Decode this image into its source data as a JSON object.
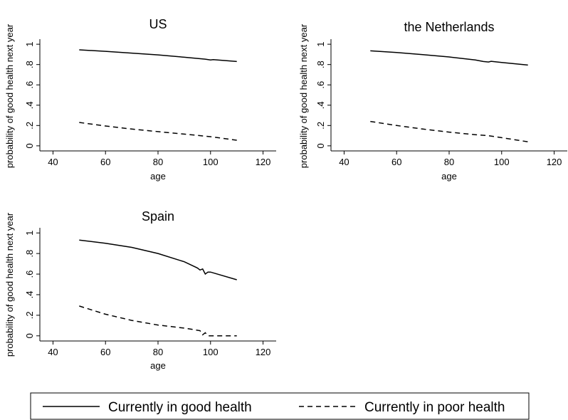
{
  "chart_data": [
    {
      "type": "line",
      "title": "US",
      "xlabel": "age",
      "ylabel": "probability of good health next year",
      "xlim": [
        35,
        125
      ],
      "ylim": [
        -0.05,
        1.05
      ],
      "xticks": [
        40,
        60,
        80,
        100,
        120
      ],
      "xtick_labels": [
        "40",
        "60",
        "80",
        "100",
        "120"
      ],
      "yticks": [
        0,
        0.2,
        0.4,
        0.6,
        0.8,
        1
      ],
      "ytick_labels": [
        "0",
        ".2",
        ".4",
        ".6",
        ".8",
        "1"
      ],
      "grid": false,
      "series": [
        {
          "name": "Currently in good health",
          "style": "solid",
          "x": [
            50,
            60,
            70,
            80,
            90,
            98,
            100,
            101,
            110
          ],
          "y": [
            0.945,
            0.93,
            0.913,
            0.895,
            0.872,
            0.853,
            0.845,
            0.848,
            0.83
          ]
        },
        {
          "name": "Currently in poor health",
          "style": "dashed",
          "x": [
            50,
            60,
            70,
            80,
            90,
            100,
            110
          ],
          "y": [
            0.23,
            0.195,
            0.165,
            0.14,
            0.115,
            0.09,
            0.055
          ]
        }
      ]
    },
    {
      "type": "line",
      "title": "the Netherlands",
      "xlabel": "age",
      "ylabel": "probability of good health next year",
      "xlim": [
        35,
        125
      ],
      "ylim": [
        -0.05,
        1.05
      ],
      "xticks": [
        40,
        60,
        80,
        100,
        120
      ],
      "xtick_labels": [
        "40",
        "60",
        "80",
        "100",
        "120"
      ],
      "yticks": [
        0,
        0.2,
        0.4,
        0.6,
        0.8,
        1
      ],
      "ytick_labels": [
        "0",
        ".2",
        ".4",
        ".6",
        ".8",
        "1"
      ],
      "grid": false,
      "series": [
        {
          "name": "Currently in good health",
          "style": "solid",
          "x": [
            50,
            60,
            70,
            80,
            90,
            93,
            95,
            96,
            100,
            110
          ],
          "y": [
            0.935,
            0.918,
            0.898,
            0.875,
            0.845,
            0.83,
            0.825,
            0.832,
            0.82,
            0.795
          ]
        },
        {
          "name": "Currently in poor health",
          "style": "dashed",
          "x": [
            50,
            60,
            70,
            80,
            90,
            95,
            100,
            110
          ],
          "y": [
            0.24,
            0.2,
            0.165,
            0.135,
            0.11,
            0.1,
            0.08,
            0.04
          ]
        }
      ]
    },
    {
      "type": "line",
      "title": "Spain",
      "xlabel": "age",
      "ylabel": "probability of good health next year",
      "xlim": [
        35,
        125
      ],
      "ylim": [
        -0.05,
        1.05
      ],
      "xticks": [
        40,
        60,
        80,
        100,
        120
      ],
      "xtick_labels": [
        "40",
        "60",
        "80",
        "100",
        "120"
      ],
      "yticks": [
        0,
        0.2,
        0.4,
        0.6,
        0.8,
        1
      ],
      "ytick_labels": [
        "0",
        ".2",
        ".4",
        ".6",
        ".8",
        "1"
      ],
      "grid": false,
      "series": [
        {
          "name": "Currently in good health",
          "style": "solid",
          "x": [
            50,
            60,
            70,
            80,
            90,
            95,
            96,
            97,
            98,
            99,
            100,
            110
          ],
          "y": [
            0.93,
            0.9,
            0.86,
            0.8,
            0.72,
            0.66,
            0.64,
            0.65,
            0.6,
            0.62,
            0.62,
            0.545
          ]
        },
        {
          "name": "Currently in poor health",
          "style": "dashed",
          "x": [
            50,
            60,
            70,
            80,
            90,
            96,
            97,
            98,
            99,
            100,
            110
          ],
          "y": [
            0.29,
            0.21,
            0.15,
            0.105,
            0.075,
            0.05,
            0.01,
            0.03,
            0.0,
            0.0,
            0.0
          ]
        }
      ]
    }
  ],
  "legend": {
    "position": "bottom",
    "items": [
      {
        "label": "Currently in good health",
        "style": "solid"
      },
      {
        "label": "Currently in poor health",
        "style": "dashed"
      }
    ]
  }
}
